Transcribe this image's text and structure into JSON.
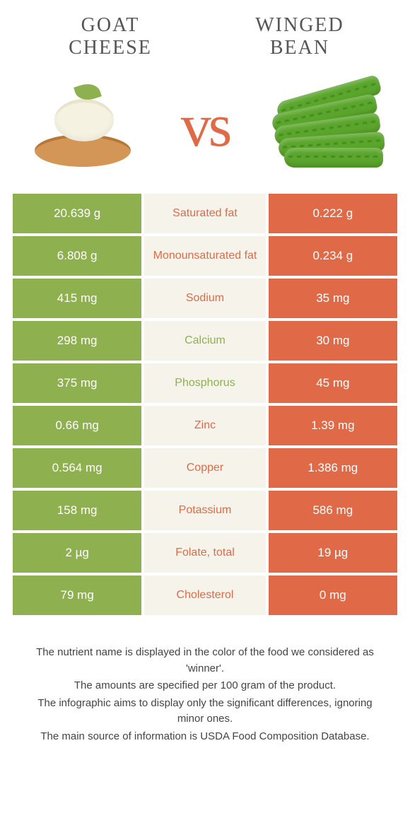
{
  "colors": {
    "left": "#8fb04e",
    "right": "#e06a47",
    "mid_bg": "#f6f4ea"
  },
  "header": {
    "left_title": "Goat cheese",
    "right_title": "Winged bean",
    "vs": "vs"
  },
  "rows": [
    {
      "left": "20.639 g",
      "label": "Saturated fat",
      "right": "0.222 g",
      "winner": "right"
    },
    {
      "left": "6.808 g",
      "label": "Monounsaturated fat",
      "right": "0.234 g",
      "winner": "right"
    },
    {
      "left": "415 mg",
      "label": "Sodium",
      "right": "35 mg",
      "winner": "right"
    },
    {
      "left": "298 mg",
      "label": "Calcium",
      "right": "30 mg",
      "winner": "left"
    },
    {
      "left": "375 mg",
      "label": "Phosphorus",
      "right": "45 mg",
      "winner": "left"
    },
    {
      "left": "0.66 mg",
      "label": "Zinc",
      "right": "1.39 mg",
      "winner": "right"
    },
    {
      "left": "0.564 mg",
      "label": "Copper",
      "right": "1.386 mg",
      "winner": "right"
    },
    {
      "left": "158 mg",
      "label": "Potassium",
      "right": "586 mg",
      "winner": "right"
    },
    {
      "left": "2 µg",
      "label": "Folate, total",
      "right": "19 µg",
      "winner": "right"
    },
    {
      "left": "79 mg",
      "label": "Cholesterol",
      "right": "0 mg",
      "winner": "right"
    }
  ],
  "footer": {
    "line1": "The nutrient name is displayed in the color of the food we considered as 'winner'.",
    "line2": "The amounts are specified per 100 gram of the product.",
    "line3": "The infographic aims to display only the significant differences, ignoring minor ones.",
    "line4": "The main source of information is USDA Food Composition Database."
  }
}
